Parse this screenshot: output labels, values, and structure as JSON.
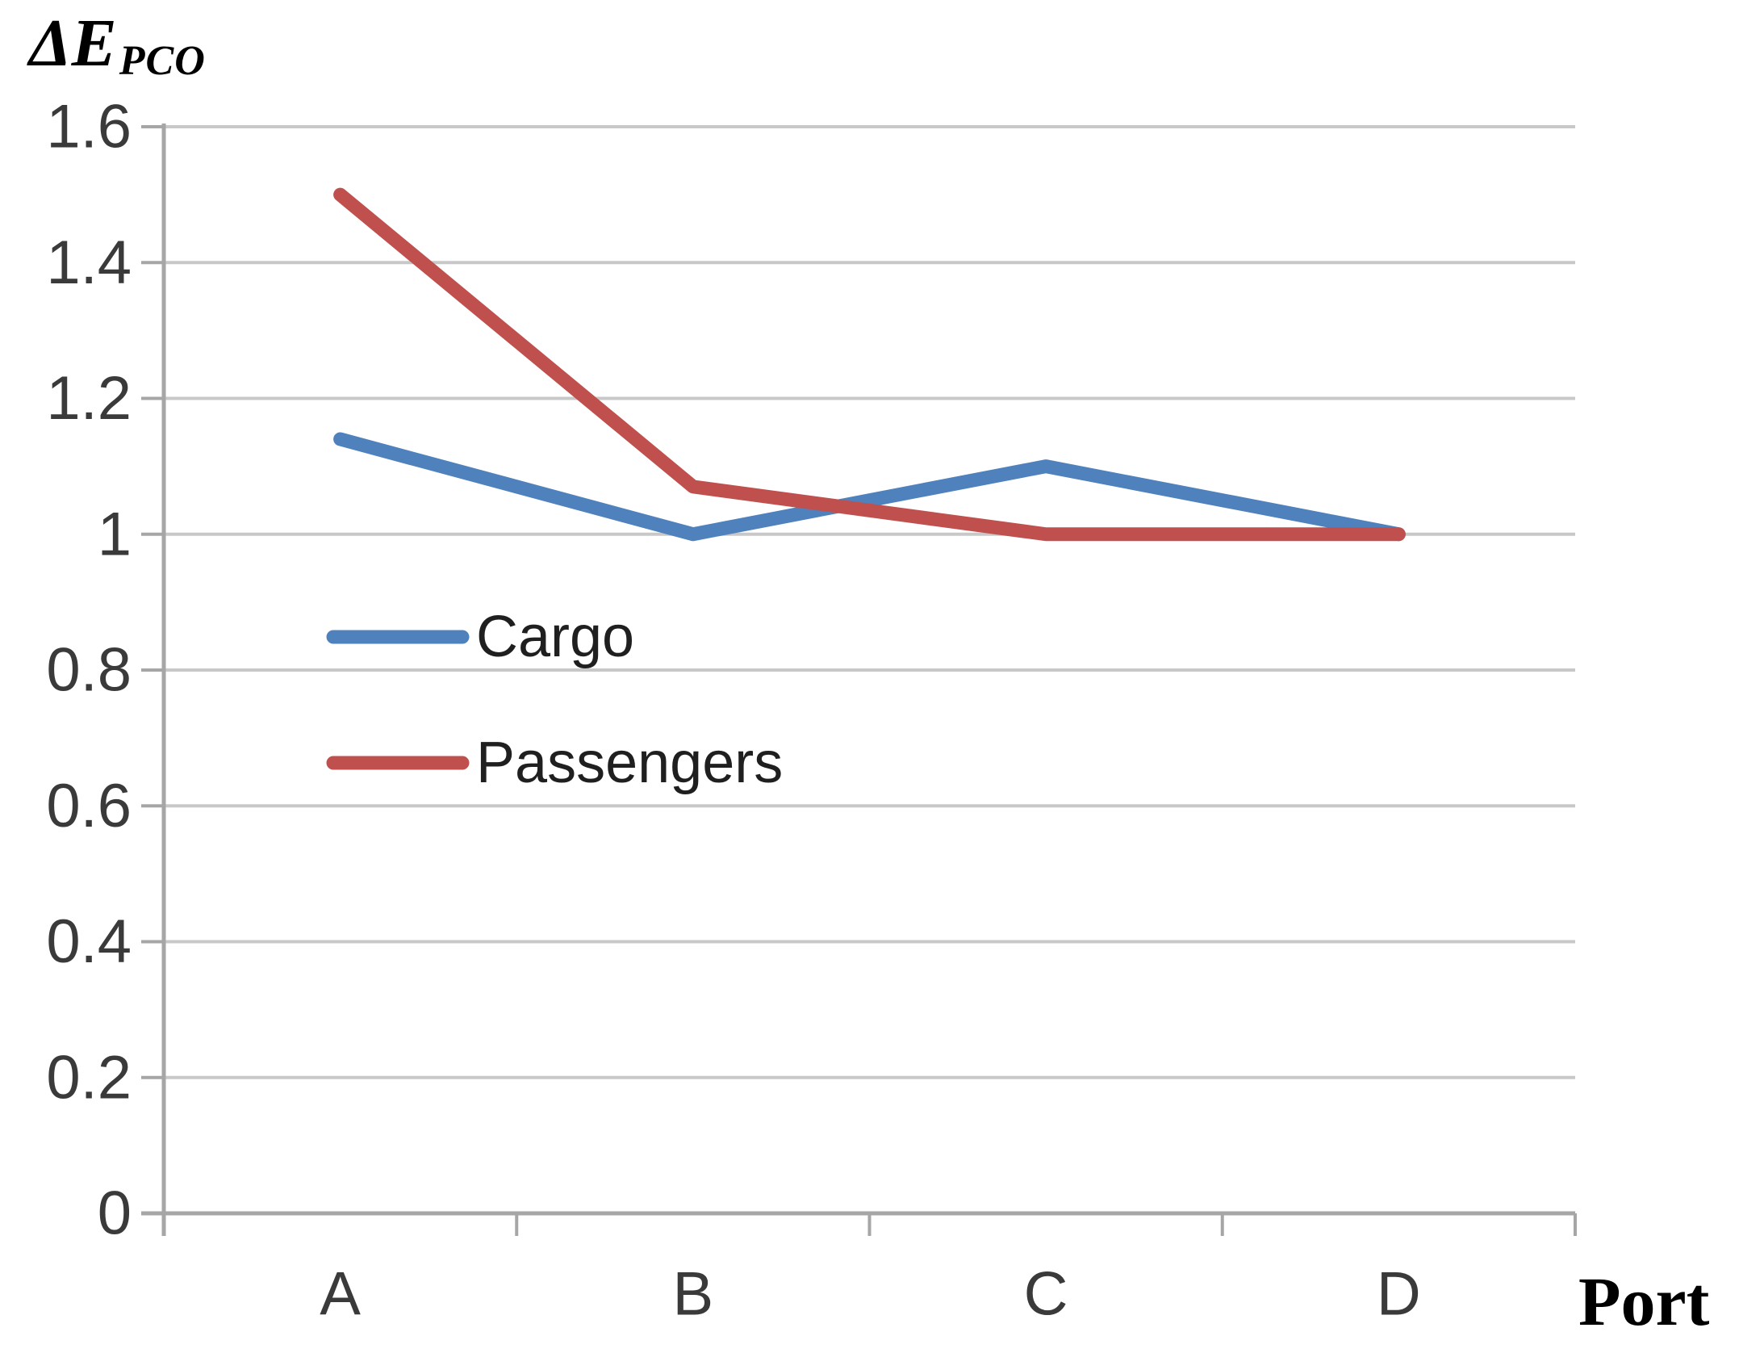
{
  "y_axis_title": {
    "main": "ΔE",
    "subscript": "PCO"
  },
  "x_axis_title": "Port",
  "chart_data": {
    "type": "line",
    "title": "",
    "categories": [
      "A",
      "B",
      "C",
      "D"
    ],
    "series": [
      {
        "name": "Cargo",
        "color": "#4F81BD",
        "values": [
          1.14,
          1.0,
          1.1,
          1.0
        ]
      },
      {
        "name": "Passengers",
        "color": "#C0504D",
        "values": [
          1.5,
          1.07,
          1.0,
          1.0
        ]
      }
    ],
    "xlabel": "Port",
    "ylabel": "ΔE_PCO",
    "ylim": [
      0,
      1.6
    ],
    "y_tick_labels": [
      "0",
      "0.2",
      "0.4",
      "0.6",
      "0.8",
      "1",
      "1.2",
      "1.4",
      "1.6"
    ],
    "grid": true,
    "legend_position": "inside-left-middle",
    "colors": {
      "gridline": "#C8C8C8",
      "axis": "#A6A6A6",
      "tick_label_text": "#3A3A3A",
      "legend_text": "#1F1F1F",
      "background": "#FFFFFF"
    }
  }
}
